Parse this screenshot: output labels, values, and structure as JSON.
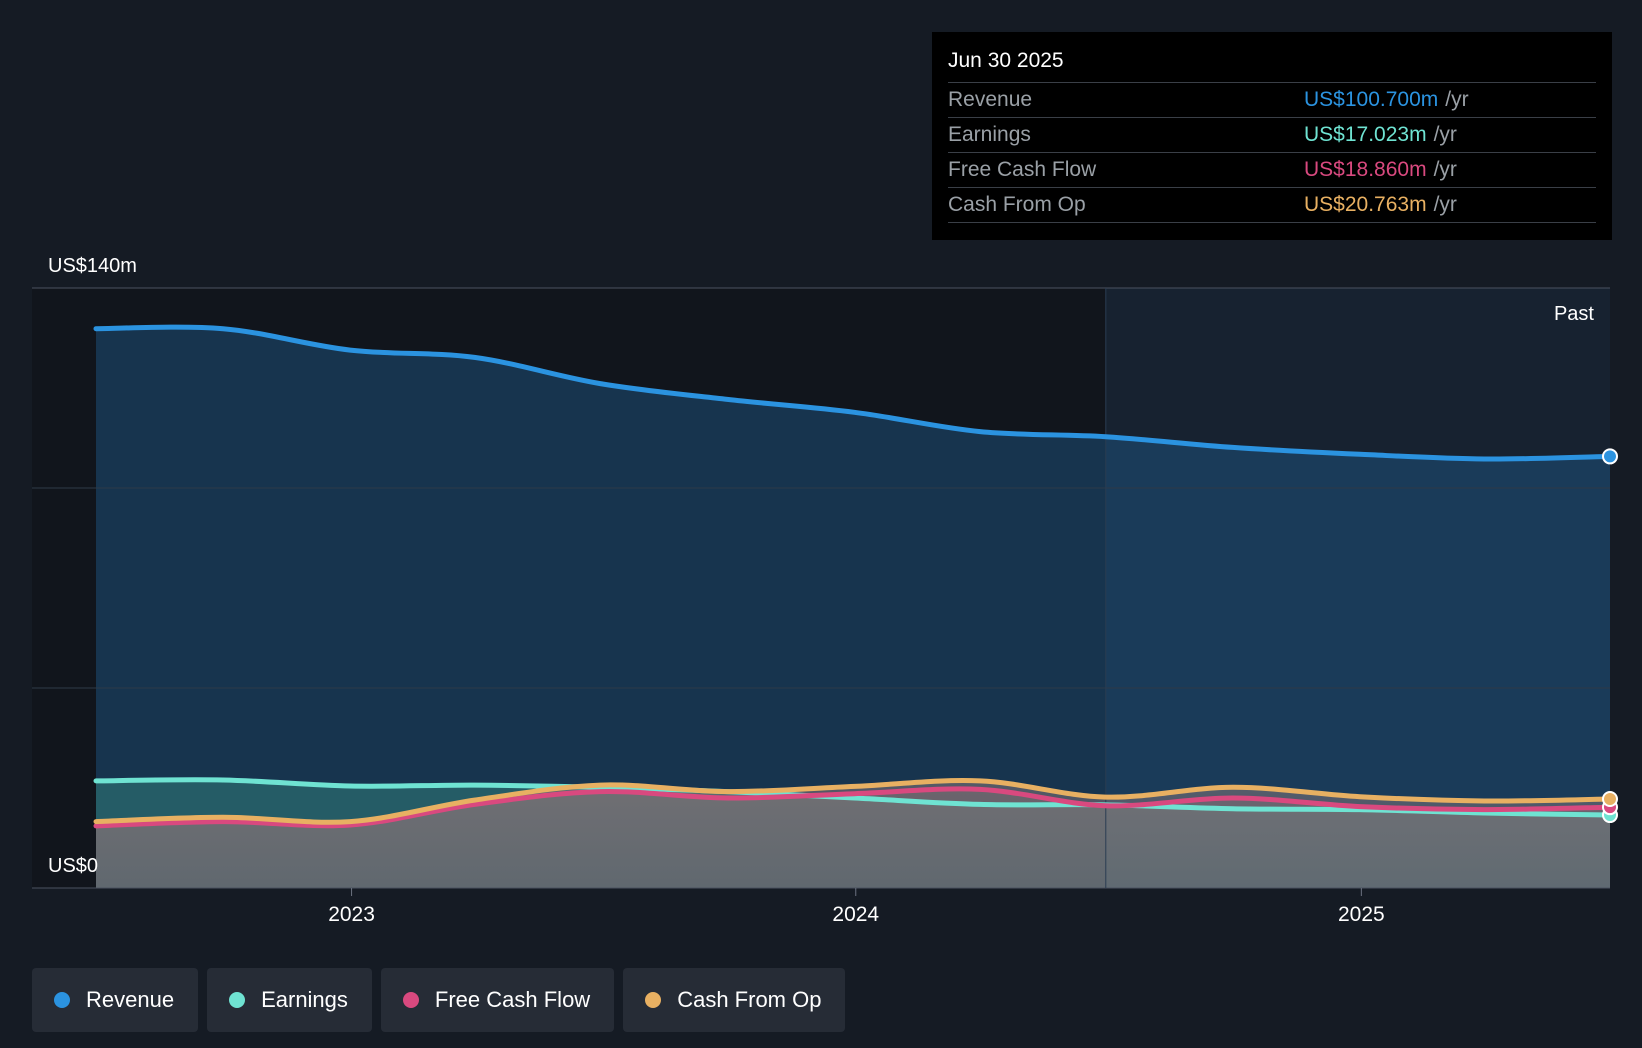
{
  "colors": {
    "revenue": "#2b93e0",
    "earnings": "#6fe3d2",
    "fcf": "#d9497f",
    "cfo": "#e8b062"
  },
  "tooltip": {
    "date": "Jun 30 2025",
    "rows": [
      {
        "label": "Revenue",
        "value": "US$100.700m",
        "unit": "/yr",
        "color": "#2b93e0"
      },
      {
        "label": "Earnings",
        "value": "US$17.023m",
        "unit": "/yr",
        "color": "#6fe3d2"
      },
      {
        "label": "Free Cash Flow",
        "value": "US$18.860m",
        "unit": "/yr",
        "color": "#d9497f"
      },
      {
        "label": "Cash From Op",
        "value": "US$20.763m",
        "unit": "/yr",
        "color": "#e8b062"
      }
    ]
  },
  "legend": [
    {
      "label": "Revenue",
      "icon": "dot-icon",
      "color": "#2b93e0"
    },
    {
      "label": "Earnings",
      "icon": "dot-icon",
      "color": "#6fe3d2"
    },
    {
      "label": "Free Cash Flow",
      "icon": "dot-icon",
      "color": "#d9497f"
    },
    {
      "label": "Cash From Op",
      "icon": "dot-icon",
      "color": "#e8b062"
    }
  ],
  "chart_data": {
    "type": "area",
    "title": "",
    "xlabel": "",
    "ylabel": "",
    "y_top_label": "US$140m",
    "y_bottom_label": "US$0",
    "past_label": "Past",
    "ylim": [
      0,
      140
    ],
    "xlim": [
      "2022-06-30",
      "2025-06-30"
    ],
    "past_start": "2024-06-30",
    "x_ticks": [
      {
        "label": "2023",
        "date": "2023-01-01"
      },
      {
        "label": "2024",
        "date": "2024-01-01"
      },
      {
        "label": "2025",
        "date": "2025-01-01"
      }
    ],
    "grid": true,
    "legend_position": "bottom",
    "x": [
      "2022-06-30",
      "2022-09-30",
      "2022-12-31",
      "2023-03-31",
      "2023-06-30",
      "2023-09-30",
      "2023-12-31",
      "2024-03-31",
      "2024-06-30",
      "2024-09-30",
      "2024-12-31",
      "2025-03-31",
      "2025-06-30"
    ],
    "series": [
      {
        "name": "Revenue",
        "color": "#2b93e0",
        "values": [
          130.5,
          130.5,
          125.5,
          123.8,
          117.7,
          114.0,
          111.0,
          106.5,
          105.3,
          102.8,
          101.2,
          100.1,
          100.7
        ]
      },
      {
        "name": "Earnings",
        "color": "#6fe3d2",
        "values": [
          25.0,
          25.2,
          23.8,
          24.0,
          23.5,
          22.5,
          21.0,
          19.5,
          19.4,
          18.5,
          18.3,
          17.5,
          17.023
        ]
      },
      {
        "name": "Free Cash Flow",
        "color": "#d9497f",
        "values": [
          14.5,
          15.5,
          14.7,
          19.5,
          22.5,
          21.0,
          22.0,
          23.0,
          19.2,
          21.0,
          19.0,
          18.3,
          18.86
        ]
      },
      {
        "name": "Cash From Op",
        "color": "#e8b062",
        "values": [
          15.5,
          16.5,
          15.5,
          20.5,
          24.0,
          22.5,
          23.7,
          25.0,
          21.2,
          23.5,
          21.3,
          20.3,
          20.763
        ]
      }
    ]
  }
}
